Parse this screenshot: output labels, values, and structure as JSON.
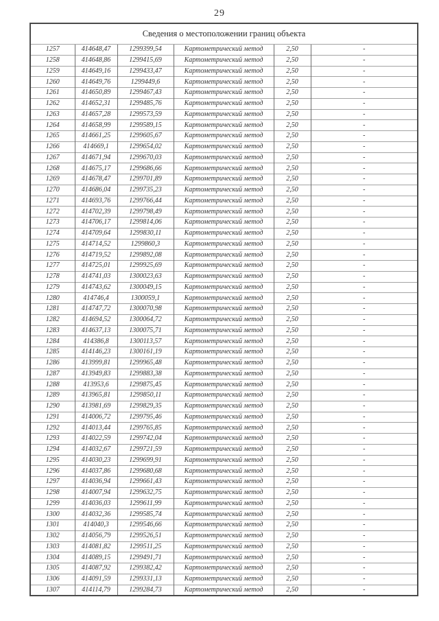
{
  "page": {
    "number": "29"
  },
  "table": {
    "title": "Сведения о местоположении границ объекта",
    "method_label": "Картометрический метод",
    "precision_value": "2,50",
    "empty_mark": "-",
    "rows": [
      [
        "1257",
        "414648,47",
        "1299399,54"
      ],
      [
        "1258",
        "414648,86",
        "1299415,69"
      ],
      [
        "1259",
        "414649,16",
        "1299433,47"
      ],
      [
        "1260",
        "414649,76",
        "1299449,6"
      ],
      [
        "1261",
        "414650,89",
        "1299467,43"
      ],
      [
        "1262",
        "414652,31",
        "1299485,76"
      ],
      [
        "1263",
        "414657,28",
        "1299573,59"
      ],
      [
        "1264",
        "414658,99",
        "1299589,15"
      ],
      [
        "1265",
        "414661,25",
        "1299605,67"
      ],
      [
        "1266",
        "414669,1",
        "1299654,02"
      ],
      [
        "1267",
        "414671,94",
        "1299670,03"
      ],
      [
        "1268",
        "414675,17",
        "1299686,66"
      ],
      [
        "1269",
        "414678,47",
        "1299701,89"
      ],
      [
        "1270",
        "414686,04",
        "1299735,23"
      ],
      [
        "1271",
        "414693,76",
        "1299766,44"
      ],
      [
        "1272",
        "414702,39",
        "1299798,49"
      ],
      [
        "1273",
        "414706,17",
        "1299814,06"
      ],
      [
        "1274",
        "414709,64",
        "1299830,11"
      ],
      [
        "1275",
        "414714,52",
        "1299860,3"
      ],
      [
        "1276",
        "414719,52",
        "1299892,08"
      ],
      [
        "1277",
        "414725,01",
        "1299925,69"
      ],
      [
        "1278",
        "414741,03",
        "1300023,63"
      ],
      [
        "1279",
        "414743,62",
        "1300049,15"
      ],
      [
        "1280",
        "414746,4",
        "1300059,1"
      ],
      [
        "1281",
        "414747,72",
        "1300070,98"
      ],
      [
        "1282",
        "414694,52",
        "1300064,72"
      ],
      [
        "1283",
        "414637,13",
        "1300075,71"
      ],
      [
        "1284",
        "414386,8",
        "1300113,57"
      ],
      [
        "1285",
        "414146,23",
        "1300161,19"
      ],
      [
        "1286",
        "413999,81",
        "1299965,48"
      ],
      [
        "1287",
        "413949,83",
        "1299883,38"
      ],
      [
        "1288",
        "413953,6",
        "1299875,45"
      ],
      [
        "1289",
        "413965,81",
        "1299850,11"
      ],
      [
        "1290",
        "413981,69",
        "1299829,35"
      ],
      [
        "1291",
        "414006,72",
        "1299795,46"
      ],
      [
        "1292",
        "414013,44",
        "1299765,85"
      ],
      [
        "1293",
        "414022,59",
        "1299742,04"
      ],
      [
        "1294",
        "414032,67",
        "1299721,59"
      ],
      [
        "1295",
        "414030,23",
        "1299699,91"
      ],
      [
        "1296",
        "414037,86",
        "1299680,68"
      ],
      [
        "1297",
        "414036,94",
        "1299661,43"
      ],
      [
        "1298",
        "414007,94",
        "1299632,75"
      ],
      [
        "1299",
        "414036,03",
        "1299611,99"
      ],
      [
        "1300",
        "414032,36",
        "1299585,74"
      ],
      [
        "1301",
        "414040,3",
        "1299546,66"
      ],
      [
        "1302",
        "414056,79",
        "1299526,51"
      ],
      [
        "1303",
        "414081,82",
        "1299511,25"
      ],
      [
        "1304",
        "414089,15",
        "1299491,71"
      ],
      [
        "1305",
        "414087,92",
        "1299382,42"
      ],
      [
        "1306",
        "414091,59",
        "1299331,13"
      ],
      [
        "1307",
        "414114,79",
        "1299284,73"
      ]
    ]
  }
}
